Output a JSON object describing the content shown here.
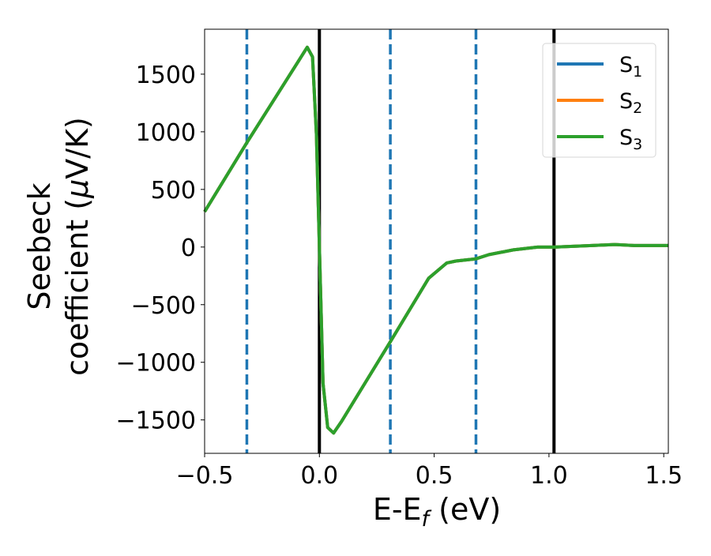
{
  "chart_data": {
    "type": "line",
    "title": "",
    "xlabel": {
      "main": "E-E",
      "sub": "f",
      "unit": " (eV)"
    },
    "ylabel": {
      "line1": "Seebeck",
      "line2": "coefficient  (",
      "mu": "μ",
      "line2_end": "V/K)"
    },
    "xlim": [
      -0.5,
      1.52
    ],
    "ylim": [
      -1790,
      1890
    ],
    "xticks": [
      -0.5,
      0.0,
      0.5,
      1.0,
      1.5
    ],
    "xtick_labels": [
      "−0.5",
      "0.0",
      "0.5",
      "1.0",
      "1.5"
    ],
    "yticks": [
      1500,
      1000,
      500,
      0,
      -500,
      -1000,
      -1500
    ],
    "ytick_labels": [
      "1500",
      "1000",
      "500",
      "0",
      "−500",
      "−1000",
      "−1500"
    ],
    "grid": false,
    "legend_placement": "top-right",
    "vertical_lines": [
      {
        "x": -0.316,
        "style": "dashed",
        "color": "#1f77b4"
      },
      {
        "x": 0.0,
        "style": "solid",
        "color": "#000000"
      },
      {
        "x": 0.309,
        "style": "dashed",
        "color": "#1f77b4"
      },
      {
        "x": 0.682,
        "style": "dashed",
        "color": "#1f77b4"
      },
      {
        "x": 1.022,
        "style": "solid",
        "color": "#000000"
      }
    ],
    "x": [
      -0.5,
      -0.316,
      -0.053,
      -0.03,
      -0.013,
      0.0,
      0.016,
      0.036,
      0.062,
      0.095,
      0.309,
      0.476,
      0.555,
      0.595,
      0.682,
      0.739,
      0.845,
      0.95,
      1.022,
      1.187,
      1.286,
      1.371,
      1.52
    ],
    "series": [
      {
        "name": "S",
        "sub": "1",
        "color": "#1f77b4",
        "values": [
          306,
          906,
          1734,
          1650,
          980,
          0,
          -1182,
          -1566,
          -1614,
          -1518,
          -822,
          -271,
          -138,
          -121,
          -102,
          -66,
          -25,
          -1,
          -1,
          13,
          22,
          13,
          13
        ]
      },
      {
        "name": "S",
        "sub": "2",
        "color": "#ff7f0e",
        "values": [
          306,
          906,
          1734,
          1650,
          980,
          0,
          -1182,
          -1566,
          -1614,
          -1518,
          -822,
          -271,
          -138,
          -121,
          -102,
          -66,
          -25,
          -1,
          -1,
          13,
          22,
          13,
          13
        ]
      },
      {
        "name": "S",
        "sub": "3",
        "color": "#2ca02c",
        "values": [
          306,
          906,
          1734,
          1650,
          980,
          0,
          -1182,
          -1566,
          -1614,
          -1518,
          -822,
          -271,
          -138,
          -121,
          -102,
          -66,
          -25,
          -1,
          -1,
          13,
          22,
          13,
          13
        ]
      }
    ]
  }
}
